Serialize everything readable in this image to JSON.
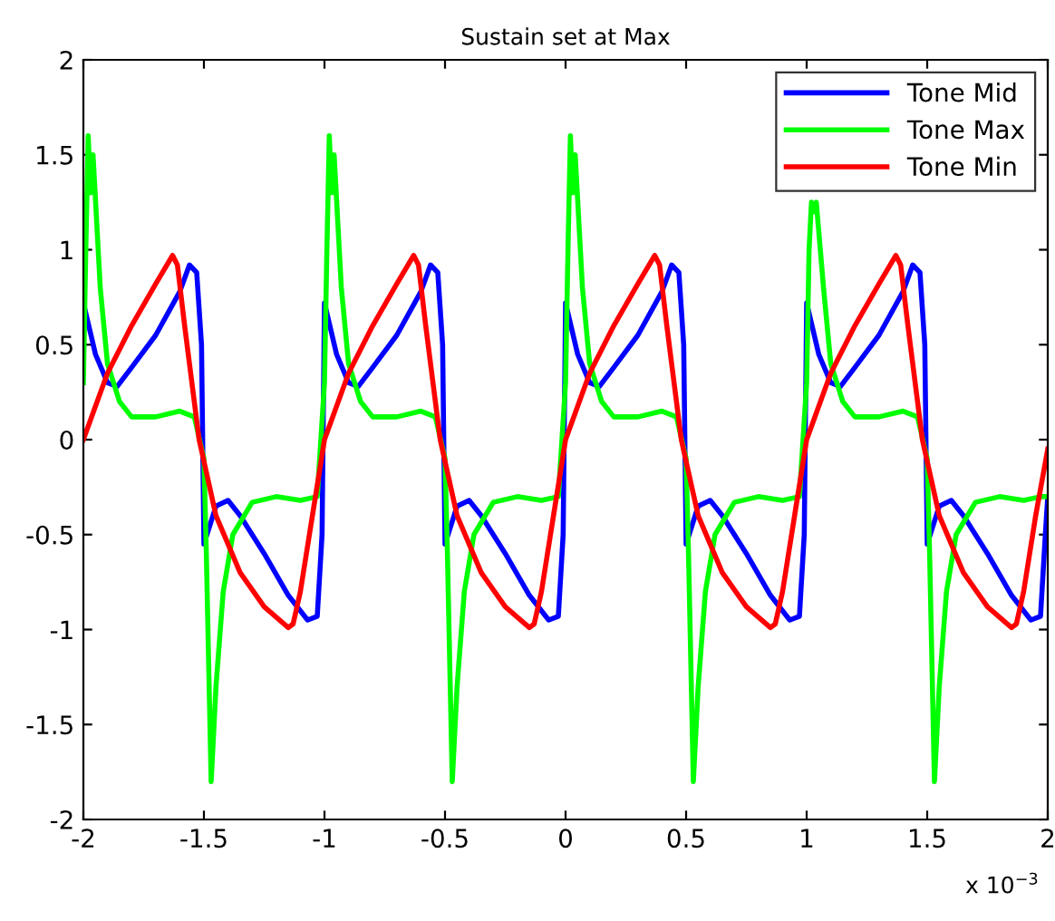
{
  "chart_data": {
    "type": "line",
    "title": "Sustain set at Max",
    "xlim": [
      -2,
      2
    ],
    "ylim": [
      -2,
      2
    ],
    "xticks": [
      -2,
      -1.5,
      -1,
      -0.5,
      0,
      0.5,
      1,
      1.5,
      2
    ],
    "yticks": [
      -2,
      -1.5,
      -1,
      -0.5,
      0,
      0.5,
      1,
      1.5,
      2
    ],
    "grid": false,
    "legend": "top right",
    "marker": "none",
    "line_style": "solid",
    "annotations": [
      "x 10$^{−3}$"
    ],
    "series": [
      {
        "name": "Tone Mid",
        "color": "#0000ff",
        "x": [
          -2,
          -1.95,
          -1.9,
          -1.86,
          -1.8,
          -1.7,
          -1.6,
          -1.56,
          -1.53,
          -1.51,
          -1.5,
          -1.45,
          -1.4,
          -1.35,
          -1.25,
          -1.15,
          -1.07,
          -1.03,
          -1.01,
          -1,
          -0.95,
          -0.9,
          -0.86,
          -0.8,
          -0.7,
          -0.6,
          -0.56,
          -0.53,
          -0.51,
          -0.5,
          -0.45,
          -0.4,
          -0.35,
          -0.25,
          -0.15,
          -0.07,
          -0.03,
          -0.01,
          0,
          0.05,
          0.1,
          0.14,
          0.2,
          0.3,
          0.4,
          0.44,
          0.47,
          0.49,
          0.5,
          0.55,
          0.6,
          0.65,
          0.75,
          0.85,
          0.93,
          0.97,
          0.99,
          1,
          1.05,
          1.1,
          1.14,
          1.2,
          1.3,
          1.4,
          1.44,
          1.47,
          1.49,
          1.5,
          1.55,
          1.6,
          1.65,
          1.75,
          1.85,
          1.93,
          1.97,
          1.99,
          2
        ],
        "values": [
          0.72,
          0.45,
          0.3,
          0.28,
          0.38,
          0.55,
          0.78,
          0.92,
          0.88,
          0.5,
          -0.55,
          -0.35,
          -0.32,
          -0.4,
          -0.6,
          -0.82,
          -0.95,
          -0.93,
          -0.5,
          0.72,
          0.45,
          0.3,
          0.28,
          0.38,
          0.55,
          0.78,
          0.92,
          0.88,
          0.5,
          -0.55,
          -0.35,
          -0.32,
          -0.4,
          -0.6,
          -0.82,
          -0.95,
          -0.93,
          -0.5,
          0.72,
          0.45,
          0.3,
          0.28,
          0.38,
          0.55,
          0.78,
          0.92,
          0.88,
          0.5,
          -0.55,
          -0.35,
          -0.32,
          -0.4,
          -0.6,
          -0.82,
          -0.95,
          -0.93,
          -0.5,
          0.72,
          0.45,
          0.3,
          0.28,
          0.38,
          0.55,
          0.78,
          0.92,
          0.88,
          0.5,
          -0.55,
          -0.35,
          -0.32,
          -0.4,
          -0.6,
          -0.82,
          -0.95,
          -0.93,
          -0.5,
          -0.3
        ]
      },
      {
        "name": "Tone Max",
        "color": "#00ff00",
        "x": [
          -2,
          -1.99,
          -1.98,
          -1.97,
          -1.96,
          -1.93,
          -1.9,
          -1.85,
          -1.8,
          -1.7,
          -1.6,
          -1.54,
          -1.5,
          -1.49,
          -1.47,
          -1.45,
          -1.42,
          -1.38,
          -1.3,
          -1.2,
          -1.1,
          -1.03,
          -1,
          -0.99,
          -0.98,
          -0.97,
          -0.96,
          -0.93,
          -0.9,
          -0.85,
          -0.8,
          -0.7,
          -0.6,
          -0.54,
          -0.5,
          -0.49,
          -0.47,
          -0.45,
          -0.42,
          -0.38,
          -0.3,
          -0.2,
          -0.1,
          -0.03,
          0,
          0.01,
          0.02,
          0.03,
          0.04,
          0.07,
          0.1,
          0.15,
          0.2,
          0.3,
          0.4,
          0.46,
          0.5,
          0.51,
          0.53,
          0.55,
          0.58,
          0.62,
          0.7,
          0.8,
          0.9,
          0.97,
          1,
          1.01,
          1.02,
          1.03,
          1.04,
          1.07,
          1.1,
          1.15,
          1.2,
          1.3,
          1.4,
          1.46,
          1.5,
          1.51,
          1.53,
          1.55,
          1.58,
          1.62,
          1.7,
          1.8,
          1.9,
          1.97,
          2
        ],
        "values": [
          0.3,
          1.0,
          1.6,
          1.3,
          1.5,
          0.8,
          0.4,
          0.2,
          0.12,
          0.12,
          0.15,
          0.12,
          -0.1,
          -0.6,
          -1.8,
          -1.3,
          -0.8,
          -0.5,
          -0.33,
          -0.3,
          -0.32,
          -0.3,
          0.3,
          1.0,
          1.6,
          1.3,
          1.5,
          0.8,
          0.4,
          0.2,
          0.12,
          0.12,
          0.15,
          0.12,
          -0.1,
          -0.6,
          -1.8,
          -1.3,
          -0.8,
          -0.5,
          -0.33,
          -0.3,
          -0.32,
          -0.3,
          0.3,
          1.0,
          1.6,
          1.3,
          1.5,
          0.8,
          0.4,
          0.2,
          0.12,
          0.12,
          0.15,
          0.12,
          -0.1,
          -0.6,
          -1.8,
          -1.3,
          -0.8,
          -0.5,
          -0.33,
          -0.3,
          -0.32,
          -0.3,
          0.3,
          1.0,
          1.25,
          1.2,
          1.25,
          0.8,
          0.4,
          0.2,
          0.12,
          0.12,
          0.15,
          0.12,
          -0.1,
          -0.6,
          -1.8,
          -1.3,
          -0.8,
          -0.5,
          -0.33,
          -0.3,
          -0.32,
          -0.3,
          -0.3
        ]
      },
      {
        "name": "Tone Min",
        "color": "#ff0000",
        "x": [
          -2,
          -1.9,
          -1.8,
          -1.7,
          -1.63,
          -1.61,
          -1.58,
          -1.52,
          -1.45,
          -1.35,
          -1.25,
          -1.15,
          -1.13,
          -1.1,
          -1.05,
          -1,
          -0.9,
          -0.8,
          -0.7,
          -0.63,
          -0.61,
          -0.58,
          -0.52,
          -0.45,
          -0.35,
          -0.25,
          -0.15,
          -0.13,
          -0.1,
          -0.05,
          0,
          0.1,
          0.2,
          0.3,
          0.37,
          0.39,
          0.42,
          0.48,
          0.55,
          0.65,
          0.75,
          0.85,
          0.87,
          0.9,
          0.95,
          1,
          1.1,
          1.2,
          1.3,
          1.37,
          1.39,
          1.42,
          1.48,
          1.55,
          1.65,
          1.75,
          1.85,
          1.87,
          1.9,
          1.95,
          2
        ],
        "values": [
          0,
          0.35,
          0.6,
          0.82,
          0.97,
          0.92,
          0.6,
          0,
          -0.4,
          -0.7,
          -0.88,
          -0.99,
          -0.97,
          -0.8,
          -0.4,
          0,
          0.35,
          0.6,
          0.82,
          0.97,
          0.92,
          0.6,
          0,
          -0.4,
          -0.7,
          -0.88,
          -0.99,
          -0.97,
          -0.8,
          -0.4,
          0,
          0.35,
          0.6,
          0.82,
          0.97,
          0.92,
          0.6,
          0,
          -0.4,
          -0.7,
          -0.88,
          -0.99,
          -0.97,
          -0.8,
          -0.4,
          0,
          0.35,
          0.6,
          0.82,
          0.97,
          0.92,
          0.6,
          0,
          -0.4,
          -0.7,
          -0.88,
          -0.99,
          -0.97,
          -0.8,
          -0.4,
          -0.05
        ]
      }
    ]
  }
}
